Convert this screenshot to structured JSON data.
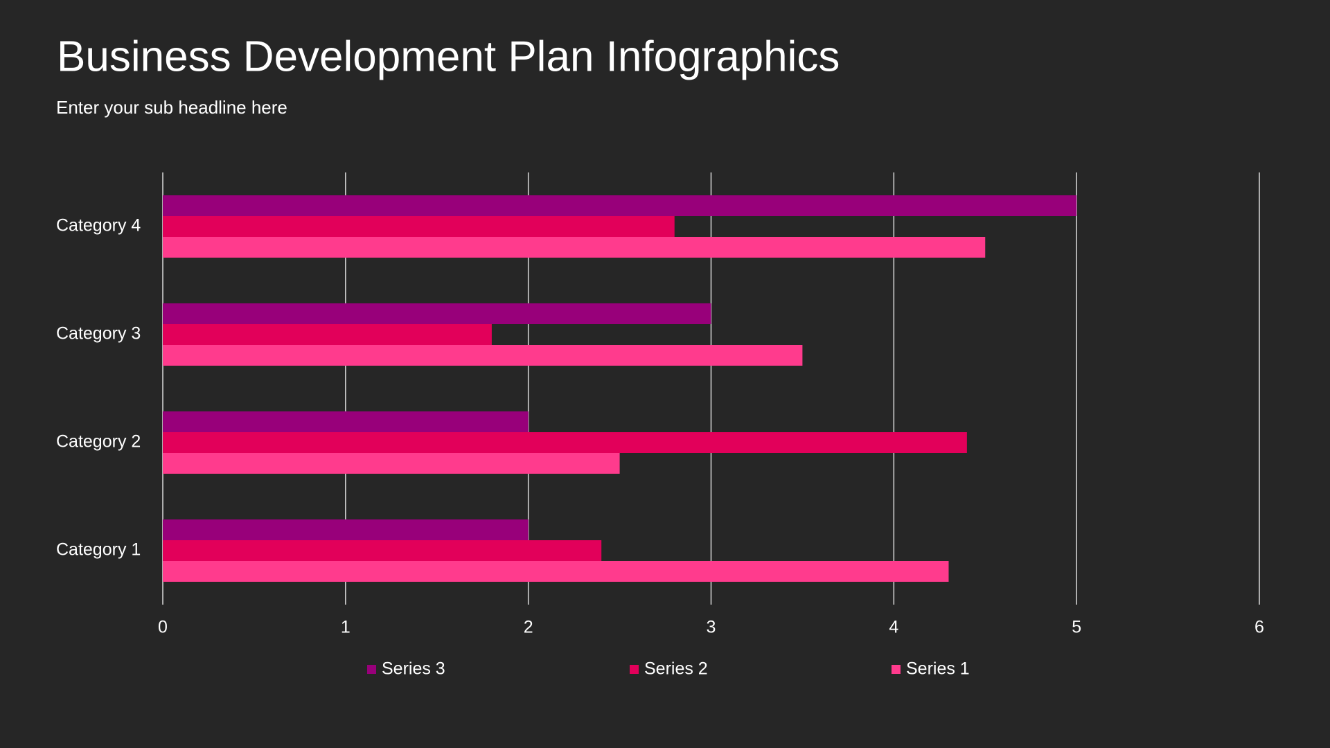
{
  "chart_data": {
    "type": "hbar",
    "title": "Business Development Plan Infographics",
    "subtitle": "Enter your sub headline here",
    "categories": [
      "Category 1",
      "Category 2",
      "Category 3",
      "Category 4"
    ],
    "series": [
      {
        "name": "Series 1",
        "color": "#ff3b8d",
        "values": [
          4.3,
          2.5,
          3.5,
          4.5
        ]
      },
      {
        "name": "Series 2",
        "color": "#e2005a",
        "values": [
          2.4,
          4.4,
          1.8,
          2.8
        ]
      },
      {
        "name": "Series 3",
        "color": "#98007a",
        "values": [
          2,
          2,
          3,
          5
        ]
      }
    ],
    "xlim": [
      0,
      6
    ],
    "xticks": [
      0,
      1,
      2,
      3,
      4,
      5,
      6
    ],
    "grid": true
  }
}
